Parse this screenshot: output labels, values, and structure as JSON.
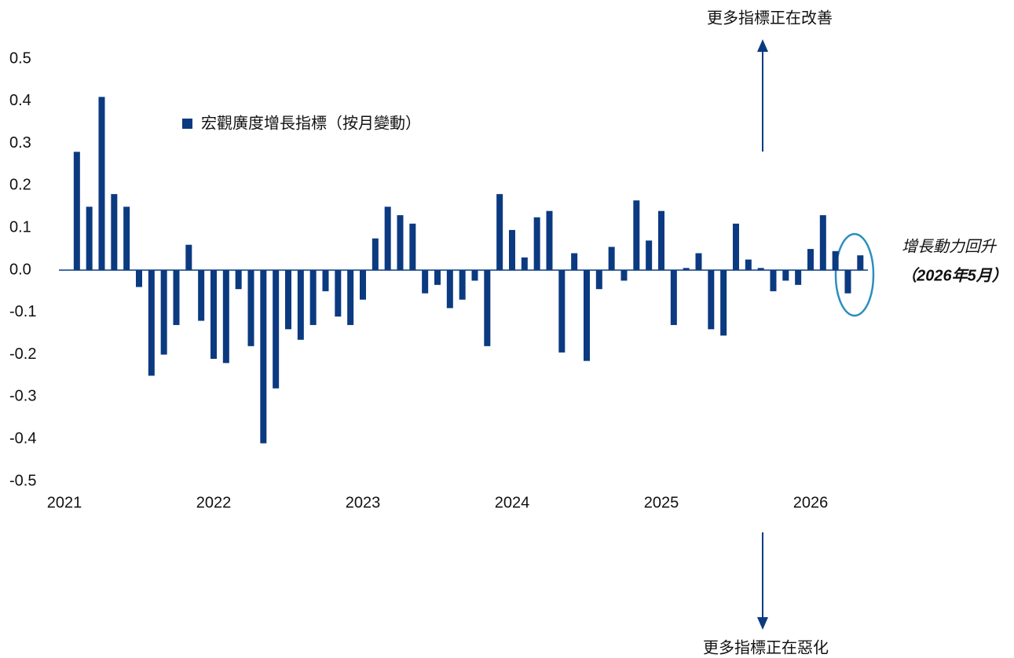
{
  "chart_data": {
    "type": "bar",
    "legend": "宏觀廣度增長指標（按月變動）",
    "color": "#0b3a80",
    "categories": [
      "2021",
      null,
      null,
      null,
      null,
      null,
      null,
      null,
      null,
      null,
      null,
      null,
      "2022",
      null,
      null,
      null,
      null,
      null,
      null,
      null,
      null,
      null,
      null,
      null,
      "2023",
      null,
      null,
      null,
      null,
      null,
      null,
      null,
      null,
      null,
      null,
      null,
      "2024",
      null,
      null,
      null,
      null,
      null,
      null,
      null,
      null,
      null,
      null,
      null,
      "2025",
      null,
      null,
      null,
      null,
      null,
      null,
      null,
      null,
      null,
      null,
      null,
      "2026",
      null,
      null,
      null,
      null
    ],
    "values": [
      null,
      0.28,
      0.15,
      0.41,
      0.18,
      0.15,
      -0.04,
      -0.25,
      -0.2,
      -0.13,
      0.06,
      -0.12,
      -0.21,
      -0.22,
      -0.045,
      -0.18,
      -0.41,
      -0.28,
      -0.14,
      -0.165,
      -0.13,
      -0.05,
      -0.11,
      -0.13,
      -0.07,
      0.075,
      0.15,
      0.13,
      0.11,
      -0.055,
      -0.035,
      -0.09,
      -0.07,
      -0.025,
      -0.18,
      0.18,
      0.095,
      0.03,
      0.125,
      0.14,
      -0.195,
      0.04,
      -0.215,
      -0.045,
      0.055,
      -0.025,
      0.165,
      0.07,
      0.14,
      -0.13,
      0.005,
      0.04,
      -0.14,
      -0.155,
      0.11,
      0.025,
      0.005,
      -0.05,
      -0.025,
      -0.035,
      0.05,
      0.13,
      0.045,
      -0.055,
      0.035
    ],
    "ylim": [
      -0.5,
      0.5
    ],
    "yticks": [
      0.5,
      0.4,
      0.3,
      0.2,
      0.1,
      {
        "value": 0,
        "label": "0.0"
      },
      -0.1,
      -0.2,
      -0.3,
      -0.4,
      -0.5
    ],
    "annotations": [
      "更多指標正在改善",
      "更多指標正在惡化",
      "增長動力回升",
      "（2026年5月）"
    ]
  }
}
